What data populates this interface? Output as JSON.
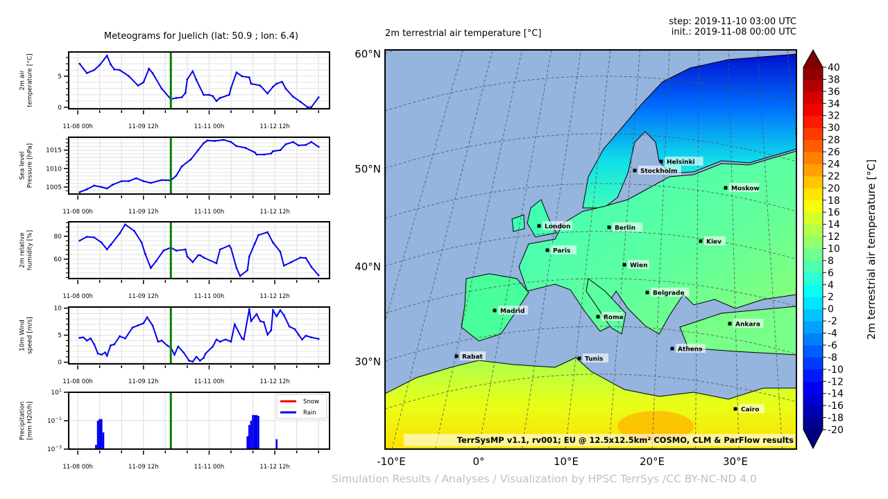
{
  "meteogram": {
    "title": "Meteograms for Juelich (lat: 50.9 ; lon: 6.4)",
    "current_step": "2019-11-10 03:00",
    "current_step_color": "#008000",
    "series_color": "#0000ee",
    "x_tick_labels": [
      "11-08 00h",
      "11-09 12h",
      "11-11 00h",
      "11-12 12h"
    ]
  },
  "chart_data": [
    {
      "type": "line",
      "ylabel": "2m air\ntemperature [°C]",
      "ylim": [
        -0.25,
        8.9
      ],
      "yticks": [
        0,
        5
      ],
      "ytick_labels": [
        "0",
        "5"
      ],
      "xlim": [
        "2019-11-07 19:00",
        "2019-11-13 18:00"
      ],
      "grid": true,
      "points": [
        [
          "2019-11-08 01:00",
          7.0
        ],
        [
          "2019-11-08 05:00",
          5.5
        ],
        [
          "2019-11-08 09:00",
          6.0
        ],
        [
          "2019-11-08 12:00",
          6.8
        ],
        [
          "2019-11-08 16:00",
          8.3
        ],
        [
          "2019-11-08 18:00",
          6.9
        ],
        [
          "2019-11-08 20:00",
          6.1
        ],
        [
          "2019-11-08 23:00",
          6.0
        ],
        [
          "2019-11-09 04:00",
          5.0
        ],
        [
          "2019-11-09 09:00",
          3.5
        ],
        [
          "2019-11-09 12:00",
          4.0
        ],
        [
          "2019-11-09 15:00",
          6.2
        ],
        [
          "2019-11-09 17:00",
          5.5
        ],
        [
          "2019-11-09 22:00",
          3.0
        ],
        [
          "2019-11-10 03:00",
          1.3
        ],
        [
          "2019-11-10 06:00",
          1.5
        ],
        [
          "2019-11-10 09:00",
          1.6
        ],
        [
          "2019-11-10 11:00",
          2.3
        ],
        [
          "2019-11-10 12:00",
          4.5
        ],
        [
          "2019-11-10 15:00",
          5.8
        ],
        [
          "2019-11-10 17:00",
          4.4
        ],
        [
          "2019-11-10 21:00",
          2.0
        ],
        [
          "2019-11-11 00:00",
          2.0
        ],
        [
          "2019-11-11 02:00",
          1.8
        ],
        [
          "2019-11-11 04:00",
          1.0
        ],
        [
          "2019-11-11 06:00",
          1.5
        ],
        [
          "2019-11-11 11:00",
          2.0
        ],
        [
          "2019-11-11 12:00",
          3.1
        ],
        [
          "2019-11-11 15:00",
          5.6
        ],
        [
          "2019-11-11 18:00",
          5.0
        ],
        [
          "2019-11-11 22:00",
          4.8
        ],
        [
          "2019-11-11 23:00",
          3.8
        ],
        [
          "2019-11-12 04:00",
          3.5
        ],
        [
          "2019-11-12 08:00",
          2.2
        ],
        [
          "2019-11-12 11:00",
          3.3
        ],
        [
          "2019-11-12 13:00",
          3.8
        ],
        [
          "2019-11-12 16:00",
          4.1
        ],
        [
          "2019-11-12 18:00",
          3.0
        ],
        [
          "2019-11-12 22:00",
          1.7
        ],
        [
          "2019-11-13 02:00",
          0.9
        ],
        [
          "2019-11-13 06:00",
          0.0
        ],
        [
          "2019-11-13 08:00",
          0.0
        ],
        [
          "2019-11-13 12:00",
          1.6
        ]
      ]
    },
    {
      "type": "line",
      "ylabel": "Sea level\nPressure [hPa]",
      "ylim": [
        1003.1,
        1018.5
      ],
      "yticks": [
        1005,
        1010,
        1015
      ],
      "ytick_labels": [
        "1005",
        "1010",
        "1015"
      ],
      "xlim": [
        "2019-11-07 19:00",
        "2019-11-13 18:00"
      ],
      "grid": true,
      "points": [
        [
          "2019-11-08 01:00",
          1003.6
        ],
        [
          "2019-11-08 05:00",
          1004.4
        ],
        [
          "2019-11-08 09:00",
          1005.4
        ],
        [
          "2019-11-08 13:00",
          1005.0
        ],
        [
          "2019-11-08 16:00",
          1004.6
        ],
        [
          "2019-11-08 19:00",
          1005.6
        ],
        [
          "2019-11-09 00:00",
          1006.6
        ],
        [
          "2019-11-09 04:00",
          1006.6
        ],
        [
          "2019-11-09 08:00",
          1007.4
        ],
        [
          "2019-11-09 12:00",
          1006.6
        ],
        [
          "2019-11-09 16:00",
          1006.1
        ],
        [
          "2019-11-09 22:00",
          1006.9
        ],
        [
          "2019-11-10 03:00",
          1006.8
        ],
        [
          "2019-11-10 06:00",
          1008.1
        ],
        [
          "2019-11-10 09:00",
          1010.6
        ],
        [
          "2019-11-10 14:00",
          1012.5
        ],
        [
          "2019-11-10 18:00",
          1015.0
        ],
        [
          "2019-11-10 21:00",
          1016.9
        ],
        [
          "2019-11-10 23:00",
          1017.6
        ],
        [
          "2019-11-11 03:00",
          1017.5
        ],
        [
          "2019-11-11 08:00",
          1017.8
        ],
        [
          "2019-11-11 12:00",
          1017.2
        ],
        [
          "2019-11-11 15:00",
          1016.1
        ],
        [
          "2019-11-11 20:00",
          1015.6
        ],
        [
          "2019-11-12 01:00",
          1014.4
        ],
        [
          "2019-11-12 02:00",
          1013.8
        ],
        [
          "2019-11-12 06:00",
          1013.8
        ],
        [
          "2019-11-12 10:00",
          1014.1
        ],
        [
          "2019-11-12 11:00",
          1014.7
        ],
        [
          "2019-11-12 15:00",
          1015.0
        ],
        [
          "2019-11-12 18:00",
          1016.6
        ],
        [
          "2019-11-12 22:00",
          1017.2
        ],
        [
          "2019-11-13 01:00",
          1016.3
        ],
        [
          "2019-11-13 05:00",
          1016.4
        ],
        [
          "2019-11-13 08:00",
          1017.2
        ],
        [
          "2019-11-13 12:00",
          1015.9
        ]
      ]
    },
    {
      "type": "line",
      "ylabel": "2m relative\nhumidity [%]",
      "ylim": [
        43,
        92.7
      ],
      "yticks": [
        60,
        80
      ],
      "ytick_labels": [
        "60",
        "80"
      ],
      "xlim": [
        "2019-11-07 19:00",
        "2019-11-13 18:00"
      ],
      "grid": true,
      "points": [
        [
          "2019-11-08 01:00",
          76.2
        ],
        [
          "2019-11-08 05:00",
          79.6
        ],
        [
          "2019-11-08 09:00",
          79.0
        ],
        [
          "2019-11-08 13:00",
          74.5
        ],
        [
          "2019-11-08 16:00",
          68.5
        ],
        [
          "2019-11-08 18:00",
          72.5
        ],
        [
          "2019-11-08 23:00",
          82.6
        ],
        [
          "2019-11-09 02:00",
          90.3
        ],
        [
          "2019-11-09 07:00",
          84.6
        ],
        [
          "2019-11-09 11:00",
          74.5
        ],
        [
          "2019-11-09 13:00",
          64.4
        ],
        [
          "2019-11-09 16:00",
          52.3
        ],
        [
          "2019-11-09 19:00",
          58.4
        ],
        [
          "2019-11-09 23:00",
          67.5
        ],
        [
          "2019-11-10 03:00",
          70.1
        ],
        [
          "2019-11-10 06:00",
          67.5
        ],
        [
          "2019-11-10 11:00",
          68.5
        ],
        [
          "2019-11-10 12:00",
          62.4
        ],
        [
          "2019-11-10 15:00",
          57.4
        ],
        [
          "2019-11-10 18:00",
          63.4
        ],
        [
          "2019-11-10 19:00",
          63.5
        ],
        [
          "2019-11-10 21:00",
          61.4
        ],
        [
          "2019-11-11 04:00",
          56.4
        ],
        [
          "2019-11-11 06:00",
          68.5
        ],
        [
          "2019-11-11 11:00",
          71.9
        ],
        [
          "2019-11-11 12:00",
          69.5
        ],
        [
          "2019-11-11 15:00",
          52.3
        ],
        [
          "2019-11-11 17:00",
          45.3
        ],
        [
          "2019-11-11 21:00",
          50.3
        ],
        [
          "2019-11-11 22:00",
          62.4
        ],
        [
          "2019-11-12 01:00",
          73.5
        ],
        [
          "2019-11-12 03:00",
          81.0
        ],
        [
          "2019-11-12 08:00",
          83.6
        ],
        [
          "2019-11-12 11:00",
          74.5
        ],
        [
          "2019-11-12 15:00",
          66.5
        ],
        [
          "2019-11-12 17:00",
          54.3
        ],
        [
          "2019-11-12 21:00",
          57.4
        ],
        [
          "2019-11-13 02:00",
          61.4
        ],
        [
          "2019-11-13 05:00",
          61.0
        ],
        [
          "2019-11-13 08:00",
          53.3
        ],
        [
          "2019-11-13 12:00",
          45.9
        ]
      ]
    },
    {
      "type": "line",
      "ylabel": "10m Wind\nspeed [m/s]",
      "ylim": [
        -0.3,
        10.2
      ],
      "yticks": [
        0,
        5,
        10
      ],
      "ytick_labels": [
        "0",
        "5",
        "10"
      ],
      "xlim": [
        "2019-11-07 19:00",
        "2019-11-13 18:00"
      ],
      "grid": true,
      "points": [
        [
          "2019-11-08 01:00",
          4.5
        ],
        [
          "2019-11-08 03:00",
          4.6
        ],
        [
          "2019-11-08 05:00",
          4.0
        ],
        [
          "2019-11-08 07:00",
          4.4
        ],
        [
          "2019-11-08 09:00",
          3.3
        ],
        [
          "2019-11-08 11:00",
          1.6
        ],
        [
          "2019-11-08 13:00",
          1.4
        ],
        [
          "2019-11-08 15:00",
          1.8
        ],
        [
          "2019-11-08 16:00",
          1.2
        ],
        [
          "2019-11-08 18:00",
          3.1
        ],
        [
          "2019-11-08 20:00",
          3.3
        ],
        [
          "2019-11-08 23:00",
          4.8
        ],
        [
          "2019-11-09 02:00",
          4.4
        ],
        [
          "2019-11-09 06:00",
          6.4
        ],
        [
          "2019-11-09 09:00",
          6.8
        ],
        [
          "2019-11-09 12:00",
          7.2
        ],
        [
          "2019-11-09 14:00",
          8.3
        ],
        [
          "2019-11-09 17:00",
          6.8
        ],
        [
          "2019-11-09 20:00",
          3.8
        ],
        [
          "2019-11-09 22:00",
          4.0
        ],
        [
          "2019-11-10 01:00",
          3.1
        ],
        [
          "2019-11-10 03:00",
          2.7
        ],
        [
          "2019-11-10 05:00",
          1.4
        ],
        [
          "2019-11-10 07:00",
          2.9
        ],
        [
          "2019-11-10 10:00",
          1.8
        ],
        [
          "2019-11-10 13:00",
          0.3
        ],
        [
          "2019-11-10 15:00",
          0.1
        ],
        [
          "2019-11-10 17:00",
          1.0
        ],
        [
          "2019-11-10 19:00",
          0.3
        ],
        [
          "2019-11-10 21:00",
          0.8
        ],
        [
          "2019-11-10 22:00",
          1.6
        ],
        [
          "2019-11-11 02:00",
          2.9
        ],
        [
          "2019-11-11 04:00",
          4.2
        ],
        [
          "2019-11-11 06:00",
          3.8
        ],
        [
          "2019-11-11 09:00",
          4.2
        ],
        [
          "2019-11-11 12:00",
          3.8
        ],
        [
          "2019-11-11 14:00",
          7.0
        ],
        [
          "2019-11-11 18:00",
          4.4
        ],
        [
          "2019-11-11 19:00",
          4.2
        ],
        [
          "2019-11-11 22:00",
          9.8
        ],
        [
          "2019-11-11 23:00",
          7.6
        ],
        [
          "2019-11-12 02:00",
          8.9
        ],
        [
          "2019-11-12 04:00",
          7.6
        ],
        [
          "2019-11-12 06:00",
          7.4
        ],
        [
          "2019-11-12 08:00",
          5.1
        ],
        [
          "2019-11-12 10:00",
          5.9
        ],
        [
          "2019-11-12 11:00",
          9.6
        ],
        [
          "2019-11-12 13:00",
          8.5
        ],
        [
          "2019-11-12 15:00",
          9.6
        ],
        [
          "2019-11-12 17:00",
          8.7
        ],
        [
          "2019-11-12 20:00",
          6.6
        ],
        [
          "2019-11-12 23:00",
          6.1
        ],
        [
          "2019-11-13 01:00",
          5.1
        ],
        [
          "2019-11-13 03:00",
          4.2
        ],
        [
          "2019-11-13 05:00",
          4.9
        ],
        [
          "2019-11-13 08:00",
          4.6
        ],
        [
          "2019-11-13 12:00",
          4.3
        ]
      ]
    },
    {
      "type": "bar",
      "ylabel": "Precipitation\n[mm H2O/h]",
      "yscale": "log",
      "ylim": [
        0.001,
        10
      ],
      "yticks": [
        0.001,
        0.1,
        10
      ],
      "ytick_labels": [
        [
          "10",
          "−3"
        ],
        [
          "10",
          "−1"
        ],
        [
          "10",
          "1"
        ]
      ],
      "xlim": [
        "2019-11-07 19:00",
        "2019-11-13 18:00"
      ],
      "grid": true,
      "legend_position": "upper-right",
      "series": [
        {
          "name": "Snow",
          "color": "#ee0000",
          "bars": []
        },
        {
          "name": "Rain",
          "color": "#0000ee",
          "bars": [
            [
              "2019-11-08 10:00",
              0.002
            ],
            [
              "2019-11-08 11:00",
              0.1
            ],
            [
              "2019-11-08 12:00",
              0.13
            ],
            [
              "2019-11-08 13:00",
              0.13
            ],
            [
              "2019-11-08 14:00",
              0.015
            ],
            [
              "2019-11-11 21:00",
              0.008
            ],
            [
              "2019-11-11 22:00",
              0.05
            ],
            [
              "2019-11-11 23:00",
              0.1
            ],
            [
              "2019-11-12 00:00",
              0.25
            ],
            [
              "2019-11-12 01:00",
              0.25
            ],
            [
              "2019-11-12 02:00",
              0.25
            ],
            [
              "2019-11-12 03:00",
              0.22
            ],
            [
              "2019-11-12 13:00",
              0.005
            ]
          ]
        }
      ]
    }
  ],
  "map": {
    "title": "2m terrestrial air temperature [°C]",
    "step": "step: 2019-11-10 03:00 UTC",
    "init": "init.: 2019-11-08 00:00 UTC",
    "lat_labels": [
      "60°N",
      "50°N",
      "40°N",
      "30°N"
    ],
    "lon_labels": [
      "-10°E",
      "0°",
      "10°E",
      "20°E",
      "30°E"
    ],
    "annotation": "TerrSysMP v1.1, rv001; EU @ 12.5x12.5km² COSMO, CLM & ParFlow results",
    "sea_color": "#95b4de",
    "cities": [
      "Helsinki",
      "Stockholm",
      "Moskow",
      "London",
      "Berlin",
      "Kiev",
      "Paris",
      "Wien",
      "Belgrade",
      "Madrid",
      "Roma",
      "Ankara",
      "Athens",
      "Rabat",
      "Tunis",
      "Cairo"
    ]
  },
  "colorbar": {
    "label": "2m terrestrial air temperature [°C]",
    "ticks": [
      "40",
      "38",
      "36",
      "34",
      "32",
      "30",
      "28",
      "26",
      "24",
      "22",
      "20",
      "18",
      "16",
      "14",
      "12",
      "10",
      "8",
      "6",
      "4",
      "2",
      "0",
      "-2",
      "-4",
      "-6",
      "-8",
      "-10",
      "-12",
      "-14",
      "-16",
      "-18",
      "-20"
    ],
    "colors": [
      "#000091",
      "#0000b3",
      "#0000d4",
      "#0000f6",
      "#001aff",
      "#003bff",
      "#005dff",
      "#0080ff",
      "#00a1ff",
      "#00c3ff",
      "#00e5ff",
      "#08fff6",
      "#2bffd4",
      "#4cffb3",
      "#6eff91",
      "#91ff6e",
      "#b3ff4c",
      "#d4ff2b",
      "#f6ff08",
      "#ffe500",
      "#ffc300",
      "#ffa100",
      "#ff8000",
      "#ff5d00",
      "#ff3b00",
      "#ff1a00",
      "#f60000",
      "#d40000",
      "#b30000",
      "#910000"
    ],
    "under_color": "#00007f",
    "over_color": "#7f0000"
  },
  "credit": "Simulation Results / Analyses / Visualization by HPSC TerrSys /CC BY-NC-ND 4.0"
}
